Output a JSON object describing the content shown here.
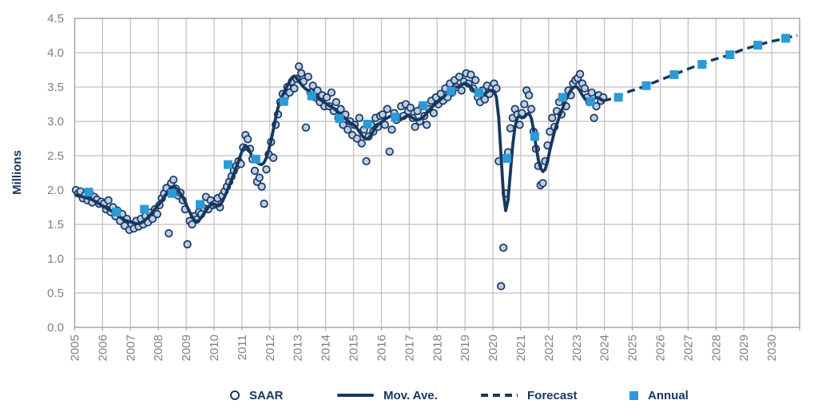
{
  "y_axis_title": "Millions",
  "legend": [
    {
      "label": "SAAR",
      "marker": "circle-marker-icon"
    },
    {
      "label": "Mov. Ave.",
      "marker": "solid-line-icon"
    },
    {
      "label": "Forecast",
      "marker": "dashed-line-icon"
    },
    {
      "label": "Annual",
      "marker": "square-marker-icon"
    }
  ],
  "colors": {
    "navy": "#17375E",
    "dot_fill": "#BCCDE8",
    "annual_blue": "#2B9BD7",
    "gridline": "#BFBFBF",
    "border": "#A6A6A6",
    "tick_text": "#7F7F7F"
  },
  "chart_data": {
    "type": "combo",
    "title": "",
    "ylabel": "Millions",
    "xlabel": "",
    "ylim": [
      0,
      4.5
    ],
    "ytick_step": 0.5,
    "xlim": [
      2005,
      2031
    ],
    "xticks": [
      2005,
      2006,
      2007,
      2008,
      2009,
      2010,
      2011,
      2012,
      2013,
      2014,
      2015,
      2016,
      2017,
      2018,
      2019,
      2020,
      2021,
      2022,
      2023,
      2024,
      2025,
      2026,
      2027,
      2028,
      2029,
      2030
    ],
    "grid": true,
    "legend_position": "bottom",
    "series": [
      {
        "name": "SAAR",
        "type": "scatter",
        "marker": "circle",
        "start": 2005.042,
        "step": 0.083333,
        "values": [
          2.0,
          1.95,
          1.98,
          1.88,
          1.93,
          1.85,
          1.95,
          1.82,
          1.9,
          1.86,
          1.8,
          1.83,
          1.8,
          1.72,
          1.85,
          1.68,
          1.75,
          1.62,
          1.7,
          1.55,
          1.65,
          1.48,
          1.58,
          1.42,
          1.5,
          1.44,
          1.55,
          1.47,
          1.58,
          1.5,
          1.62,
          1.53,
          1.67,
          1.58,
          1.72,
          1.65,
          1.78,
          1.88,
          1.95,
          2.03,
          1.37,
          2.1,
          2.15,
          2.02,
          1.92,
          1.96,
          1.85,
          1.72,
          1.21,
          1.55,
          1.5,
          1.62,
          1.57,
          1.68,
          1.65,
          1.74,
          1.9,
          1.72,
          1.85,
          1.78,
          1.8,
          1.88,
          1.75,
          1.92,
          1.98,
          2.05,
          2.12,
          2.2,
          2.28,
          2.35,
          2.42,
          2.38,
          2.62,
          2.8,
          2.74,
          2.6,
          2.45,
          2.28,
          2.12,
          2.18,
          2.05,
          1.8,
          2.3,
          2.52,
          2.7,
          2.47,
          2.95,
          3.1,
          3.28,
          3.4,
          3.35,
          3.5,
          3.42,
          3.58,
          3.48,
          3.62,
          3.8,
          3.7,
          3.58,
          2.91,
          3.65,
          3.42,
          3.52,
          3.35,
          3.45,
          3.28,
          3.38,
          3.22,
          3.35,
          3.22,
          3.42,
          3.15,
          3.28,
          3.05,
          3.18,
          2.95,
          3.1,
          2.88,
          3.0,
          2.8,
          2.95,
          2.75,
          3.05,
          2.68,
          2.88,
          2.42,
          2.78,
          2.95,
          2.85,
          3.05,
          2.92,
          3.08,
          3.1,
          2.95,
          3.18,
          2.56,
          2.88,
          3.12,
          3.02,
          3.05,
          3.22,
          3.08,
          3.25,
          3.15,
          3.2,
          3.05,
          2.92,
          3.15,
          3.0,
          3.22,
          3.08,
          2.95,
          3.18,
          3.3,
          3.12,
          3.35,
          3.25,
          3.4,
          3.3,
          3.48,
          3.35,
          3.55,
          3.42,
          3.6,
          3.5,
          3.65,
          3.45,
          3.58,
          3.7,
          3.55,
          3.68,
          3.48,
          3.6,
          3.35,
          3.28,
          3.45,
          3.32,
          3.52,
          3.4,
          3.48,
          3.55,
          3.48,
          2.42,
          0.6,
          1.16,
          1.95,
          2.55,
          2.9,
          3.05,
          3.18,
          3.1,
          2.95,
          3.12,
          3.25,
          3.45,
          3.38,
          3.18,
          2.85,
          2.6,
          2.35,
          2.07,
          2.1,
          2.42,
          2.65,
          2.85,
          3.05,
          2.92,
          3.15,
          3.28,
          3.1,
          3.35,
          3.22,
          3.45,
          3.38,
          3.55,
          3.6,
          3.63,
          3.69,
          3.55,
          3.48,
          3.35,
          3.28,
          3.42,
          3.05,
          3.22,
          3.38,
          3.3,
          3.35
        ]
      },
      {
        "name": "Mov. Ave.",
        "type": "line",
        "style": "solid",
        "start": 2005.042,
        "step": 0.083333,
        "values": [
          1.93,
          1.92,
          1.91,
          1.9,
          1.89,
          1.88,
          1.87,
          1.86,
          1.84,
          1.82,
          1.8,
          1.78,
          1.76,
          1.74,
          1.72,
          1.7,
          1.68,
          1.66,
          1.63,
          1.61,
          1.58,
          1.56,
          1.55,
          1.54,
          1.53,
          1.52,
          1.51,
          1.51,
          1.52,
          1.54,
          1.57,
          1.6,
          1.64,
          1.68,
          1.72,
          1.76,
          1.8,
          1.85,
          1.9,
          1.95,
          2.0,
          2.04,
          2.05,
          2.03,
          1.99,
          1.95,
          1.9,
          1.83,
          1.75,
          1.68,
          1.61,
          1.56,
          1.54,
          1.56,
          1.6,
          1.65,
          1.7,
          1.75,
          1.79,
          1.8,
          1.79,
          1.77,
          1.78,
          1.83,
          1.9,
          1.98,
          2.06,
          2.15,
          2.24,
          2.33,
          2.42,
          2.52,
          2.6,
          2.65,
          2.62,
          2.55,
          2.48,
          2.43,
          2.4,
          2.38,
          2.37,
          2.4,
          2.47,
          2.58,
          2.72,
          2.88,
          3.05,
          3.2,
          3.3,
          3.38,
          3.45,
          3.52,
          3.58,
          3.64,
          3.66,
          3.63,
          3.58,
          3.54,
          3.5,
          3.47,
          3.45,
          3.42,
          3.4,
          3.37,
          3.34,
          3.32,
          3.3,
          3.28,
          3.25,
          3.23,
          3.21,
          3.19,
          3.16,
          3.13,
          3.1,
          3.07,
          3.04,
          3.01,
          2.98,
          2.96,
          2.94,
          2.9,
          2.85,
          2.8,
          2.76,
          2.74,
          2.76,
          2.8,
          2.86,
          2.91,
          2.95,
          2.98,
          3.0,
          3.03,
          3.05,
          3.07,
          3.08,
          3.07,
          3.05,
          3.03,
          3.03,
          3.05,
          3.07,
          3.08,
          3.07,
          3.05,
          3.03,
          3.02,
          3.03,
          3.05,
          3.08,
          3.12,
          3.16,
          3.2,
          3.23,
          3.26,
          3.29,
          3.32,
          3.35,
          3.38,
          3.41,
          3.44,
          3.47,
          3.49,
          3.5,
          3.51,
          3.53,
          3.55,
          3.55,
          3.53,
          3.5,
          3.46,
          3.42,
          3.39,
          3.37,
          3.38,
          3.4,
          3.43,
          3.45,
          3.45,
          3.44,
          3.35,
          3.05,
          2.5,
          1.95,
          1.7,
          1.85,
          2.25,
          2.65,
          2.92,
          3.05,
          3.08,
          3.05,
          3.06,
          3.1,
          3.12,
          3.05,
          2.88,
          2.65,
          2.45,
          2.32,
          2.27,
          2.3,
          2.42,
          2.58,
          2.72,
          2.85,
          2.96,
          3.06,
          3.15,
          3.24,
          3.32,
          3.39,
          3.45,
          3.49,
          3.51,
          3.49,
          3.44,
          3.38,
          3.33,
          3.3,
          3.29,
          3.31,
          3.33,
          3.35,
          3.34,
          3.32,
          3.3
        ]
      },
      {
        "name": "Forecast",
        "type": "line",
        "style": "dashed",
        "points": [
          [
            2023.958,
            3.3
          ],
          [
            2024.17,
            3.32
          ],
          [
            2024.42,
            3.36
          ],
          [
            2024.67,
            3.4
          ],
          [
            2024.92,
            3.44
          ],
          [
            2025.17,
            3.47
          ],
          [
            2025.42,
            3.51
          ],
          [
            2025.67,
            3.55
          ],
          [
            2025.92,
            3.59
          ],
          [
            2026.17,
            3.63
          ],
          [
            2026.42,
            3.67
          ],
          [
            2026.67,
            3.71
          ],
          [
            2026.92,
            3.75
          ],
          [
            2027.17,
            3.79
          ],
          [
            2027.42,
            3.82
          ],
          [
            2027.67,
            3.86
          ],
          [
            2027.92,
            3.9
          ],
          [
            2028.17,
            3.93
          ],
          [
            2028.42,
            3.96
          ],
          [
            2028.67,
            4.0
          ],
          [
            2028.92,
            4.04
          ],
          [
            2029.17,
            4.07
          ],
          [
            2029.42,
            4.1
          ],
          [
            2029.67,
            4.13
          ],
          [
            2029.92,
            4.16
          ],
          [
            2030.17,
            4.18
          ],
          [
            2030.42,
            4.2
          ],
          [
            2030.67,
            4.23
          ],
          [
            2030.92,
            4.25
          ]
        ]
      },
      {
        "name": "Annual",
        "type": "scatter",
        "marker": "square",
        "x": [
          2005.5,
          2006.5,
          2007.5,
          2008.5,
          2009.5,
          2010.5,
          2011.5,
          2012.5,
          2013.5,
          2014.5,
          2015.5,
          2016.5,
          2017.5,
          2018.5,
          2019.5,
          2020.5,
          2021.5,
          2022.5,
          2023.5,
          2024.5,
          2025.5,
          2026.5,
          2027.5,
          2028.5,
          2029.5,
          2030.5
        ],
        "values": [
          1.97,
          1.68,
          1.72,
          1.95,
          1.79,
          2.37,
          2.45,
          3.29,
          3.37,
          3.04,
          2.96,
          3.06,
          3.23,
          3.44,
          3.42,
          2.46,
          2.78,
          3.35,
          3.29,
          3.35,
          3.52,
          3.68,
          3.83,
          3.97,
          4.11,
          4.21
        ]
      }
    ]
  }
}
